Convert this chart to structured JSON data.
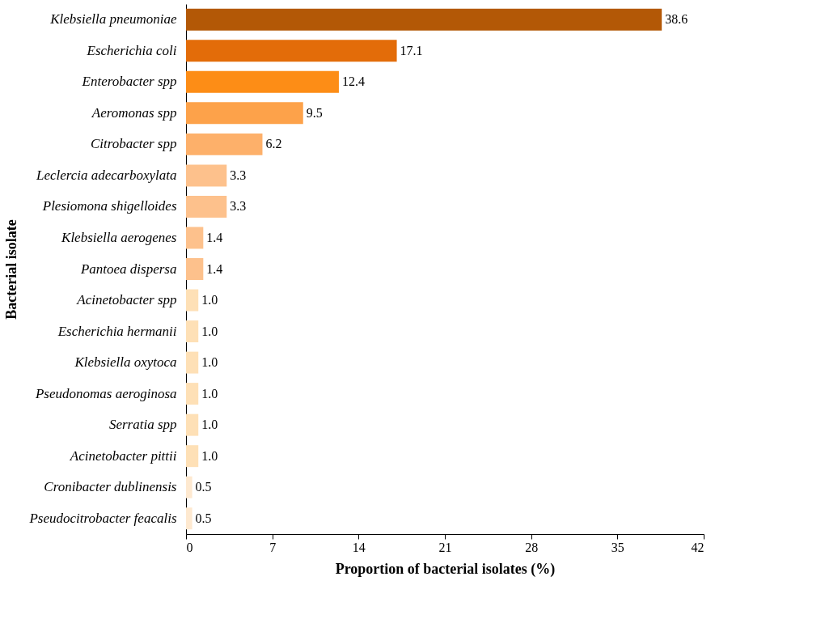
{
  "chart_data": {
    "type": "bar",
    "orientation": "horizontal",
    "xlabel": "Proportion of bacterial isolates (%)",
    "ylabel": "Bacterial isolate",
    "categories": [
      "Klebsiella pneumoniae",
      "Escherichia coli",
      "Enterobacter spp",
      "Aeromonas spp",
      "Citrobacter spp",
      "Leclercia adecarboxylata",
      "Plesiomona shigelloides",
      "Klebsiella aerogenes",
      "Pantoea dispersa",
      "Acinetobacter spp",
      "Escherichia hermanii",
      "Klebsiella oxytoca",
      "Pseudonomas aeroginosa",
      "Serratia spp",
      "Acinetobacter pittii",
      "Cronibacter dublinensis",
      "Pseudocitrobacter feacalis"
    ],
    "values": [
      38.6,
      17.1,
      12.4,
      9.5,
      6.2,
      3.3,
      3.3,
      1.4,
      1.4,
      1.0,
      1.0,
      1.0,
      1.0,
      1.0,
      1.0,
      0.5,
      0.5
    ],
    "value_labels": [
      "38.6",
      "17.1",
      "12.4",
      "9.5",
      "6.2",
      "3.3",
      "3.3",
      "1.4",
      "1.4",
      "1.0",
      "1.0",
      "1.0",
      "1.0",
      "1.0",
      "1.0",
      "0.5",
      "0.5"
    ],
    "colors": [
      "#b35806",
      "#e36c09",
      "#fd8d16",
      "#fda24a",
      "#fdb06a",
      "#fdc18c",
      "#fdc18c",
      "#fdc18c",
      "#fdc18c",
      "#fee0b6",
      "#fee0b6",
      "#fee0b6",
      "#fee0b6",
      "#fee0b6",
      "#fee0b6",
      "#fee9d0",
      "#fee9d0"
    ],
    "xlim": [
      0,
      42
    ],
    "xticks": [
      0,
      7,
      14,
      21,
      28,
      35,
      42
    ],
    "grid": false
  }
}
